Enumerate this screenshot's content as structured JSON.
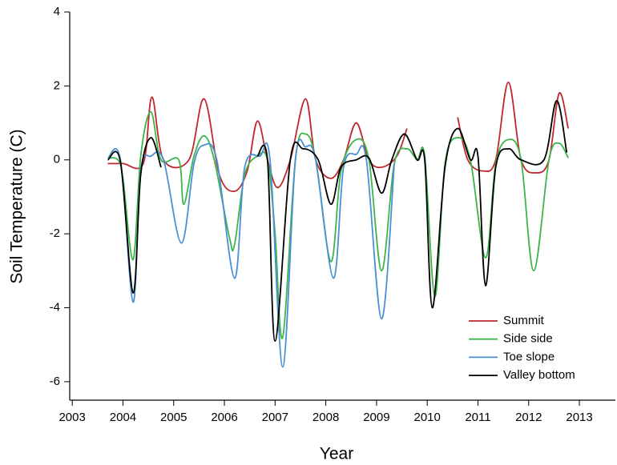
{
  "chart_data": {
    "type": "line",
    "xlabel": "Year",
    "ylabel": "Soil Temperature (C)",
    "xlim": [
      2002.95,
      2013.71
    ],
    "ylim": [
      -6.5,
      4
    ],
    "xticks": [
      2003,
      2004,
      2005,
      2006,
      2007,
      2008,
      2009,
      2010,
      2011,
      2012,
      2013
    ],
    "yticks": [
      -6,
      -4,
      -2,
      0,
      2,
      4
    ],
    "legend": "lower right",
    "grid": false,
    "series": [
      {
        "name": "Summit",
        "color": "#c1272d",
        "x": [
          2003.7,
          2004.0,
          2004.4,
          2004.57,
          2004.8,
          2005.3,
          2005.6,
          2005.9,
          2006.2,
          2006.45,
          2006.65,
          2006.85,
          2007.05,
          2007.3,
          2007.6,
          2007.8,
          2008.1,
          2008.35,
          2008.6,
          2008.85,
          2009.1,
          2009.4,
          2009.6,
          2010.0,
          2010.6,
          2010.8,
          2011.1,
          2011.35,
          2011.6,
          2011.85,
          2012.15,
          2012.4,
          2012.6,
          2012.78
        ],
        "values": [
          -0.1,
          -0.1,
          -0.1,
          1.7,
          0,
          0,
          1.65,
          -0.4,
          -0.85,
          -0.3,
          1.05,
          0,
          -0.75,
          0,
          1.65,
          0,
          -0.5,
          0,
          1.0,
          0,
          -0.2,
          0.1,
          0.85,
          null,
          1.15,
          0,
          -0.3,
          0,
          2.1,
          0,
          -0.35,
          0,
          1.8,
          0.85
        ]
      },
      {
        "name": "Side side",
        "color": "#3cb54a",
        "x": [
          2003.7,
          2003.9,
          2004.0,
          2004.2,
          2004.35,
          2004.55,
          2004.75,
          2005.1,
          2005.2,
          2005.4,
          2005.6,
          2005.8,
          2006.1,
          2006.2,
          2006.4,
          2006.65,
          2006.85,
          2007.0,
          2007.15,
          2007.4,
          2007.6,
          2007.8,
          2008.1,
          2008.3,
          2008.6,
          2008.85,
          2009.1,
          2009.35,
          2009.6,
          2009.8,
          2009.95,
          2010.15,
          2010.35,
          2010.6,
          2010.85,
          2011.15,
          2011.35,
          2011.6,
          2011.85,
          2012.1,
          2012.4,
          2012.6,
          2012.78
        ],
        "values": [
          0.05,
          0,
          -0.5,
          -2.7,
          0.1,
          1.3,
          0,
          0,
          -1.2,
          0.1,
          0.65,
          0,
          -2.1,
          -2.3,
          -0.4,
          0.1,
          0,
          -2.0,
          -4.8,
          0,
          0.7,
          0,
          -2.75,
          -0.3,
          0.55,
          0,
          -3.0,
          -0.1,
          0.3,
          0,
          0.1,
          -3.7,
          -0.1,
          0.6,
          0,
          -2.65,
          -0.1,
          0.55,
          0,
          -3.0,
          0,
          0.45,
          0.05
        ]
      },
      {
        "name": "Toe slope",
        "color": "#4a8fd4",
        "x": [
          2003.7,
          2003.95,
          2004.2,
          2004.35,
          2004.55,
          2004.8,
          2005.15,
          2005.4,
          2005.6,
          2005.85,
          2006.2,
          2006.4,
          2006.7,
          2006.9,
          2007.15,
          2007.4,
          2007.6,
          2007.8,
          2008.15,
          2008.35,
          2008.6,
          2008.8,
          2009.1,
          2009.35
        ],
        "values": [
          0.05,
          0,
          -3.85,
          -0.3,
          0.1,
          0,
          -2.25,
          -0.1,
          0.4,
          0,
          -3.2,
          -0.2,
          0.1,
          0,
          -5.6,
          0,
          0.35,
          0,
          -3.2,
          -0.2,
          0.15,
          0,
          -4.3,
          -0.1
        ]
      },
      {
        "name": "Valley bottom",
        "color": "#000000",
        "x": [
          2003.7,
          2003.95,
          2004.2,
          2004.35,
          2004.55,
          2004.75,
          2005.5,
          2006.65,
          2006.85,
          2007.0,
          2007.3,
          2007.55,
          2007.85,
          2008.1,
          2008.3,
          2008.6,
          2008.85,
          2009.1,
          2009.3,
          2009.55,
          2009.8,
          2009.95,
          2010.1,
          2010.35,
          2010.6,
          2010.85,
          2011.0,
          2011.15,
          2011.35,
          2011.6,
          2011.85,
          2012.3,
          2012.55,
          2012.75
        ],
        "values": [
          0,
          -0.05,
          -3.6,
          -0.4,
          0.6,
          -0.2,
          null,
          0.1,
          0,
          -4.9,
          0,
          0.3,
          0,
          -1.2,
          -0.2,
          0,
          0.05,
          -0.9,
          0,
          0.7,
          0,
          0,
          -4.0,
          -0.2,
          0.85,
          0,
          0.1,
          -3.4,
          -0.2,
          0.3,
          0,
          0,
          1.6,
          0.2
        ]
      }
    ]
  }
}
